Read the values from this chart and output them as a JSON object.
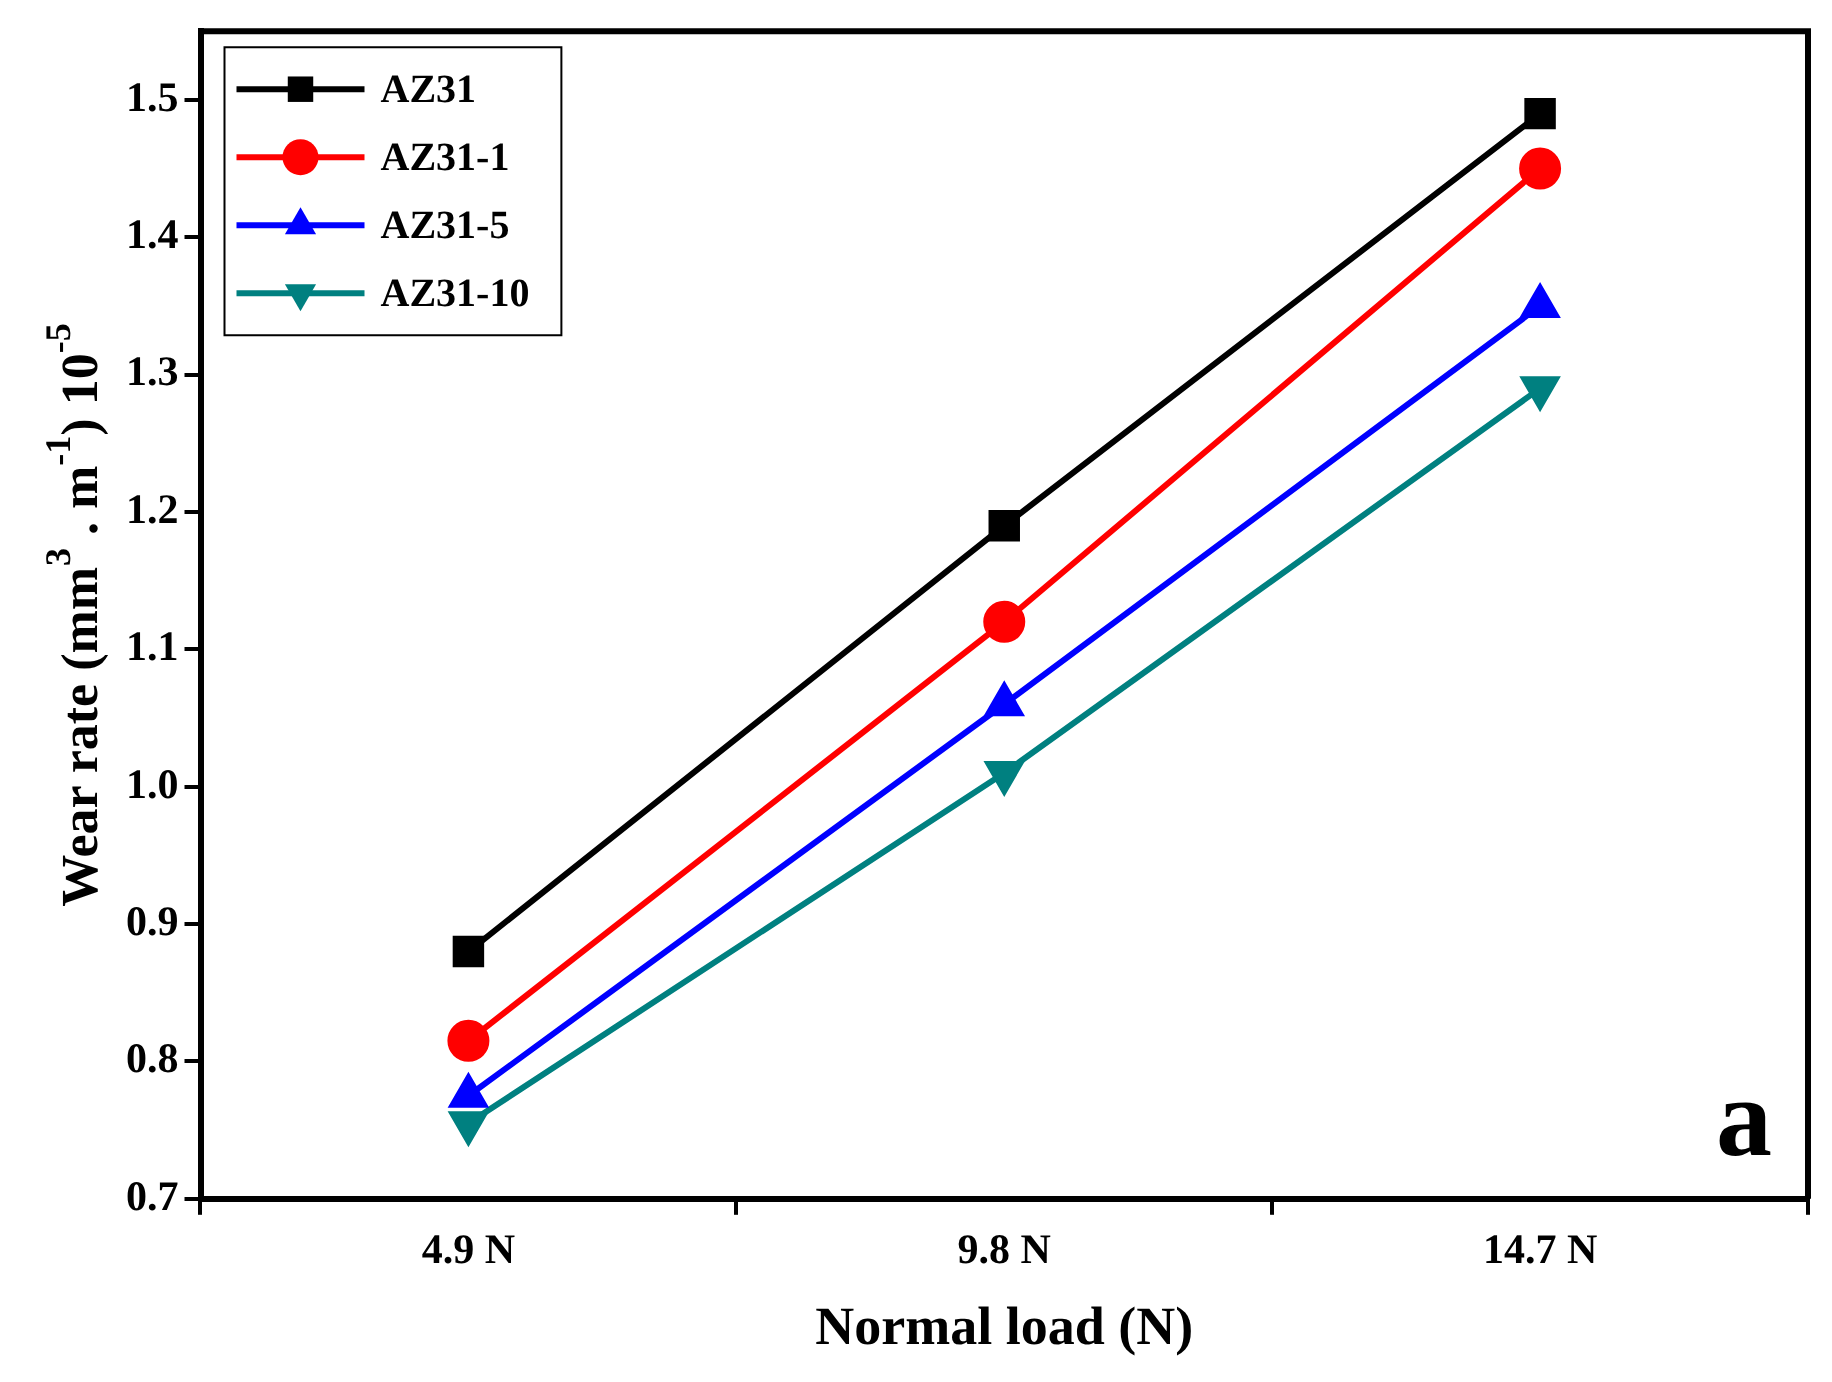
{
  "chart_data": {
    "type": "line",
    "xlabel": "Normal load (N)",
    "ylabel": "Wear rate (mm$^{3}$ . m$^{-1}$) 10$^{-5}$",
    "categories": [
      "4.9 N",
      "9.8 N",
      "14.7 N"
    ],
    "series": [
      {
        "name": "AZ31",
        "color": "#000000",
        "marker": "square",
        "values": [
          0.88,
          1.19,
          1.49
        ]
      },
      {
        "name": "AZ31-1",
        "color": "#ff0000",
        "marker": "circle",
        "values": [
          0.815,
          1.12,
          1.45
        ]
      },
      {
        "name": "AZ31-5",
        "color": "#0000ff",
        "marker": "triangle",
        "values": [
          0.775,
          1.06,
          1.35
        ]
      },
      {
        "name": "AZ31-10",
        "color": "#008080",
        "marker": "triangle-down",
        "values": [
          0.755,
          1.01,
          1.29
        ]
      }
    ],
    "ylim": [
      0.7,
      1.55
    ],
    "yticks": [
      0.7,
      0.8,
      0.9,
      {
        "value": 1,
        "label": "1.0"
      },
      1.1,
      1.2,
      1.3,
      1.4,
      1.5
    ],
    "grid": false,
    "legend": "top left",
    "line_style": "solid",
    "annotations": [
      "a"
    ]
  }
}
